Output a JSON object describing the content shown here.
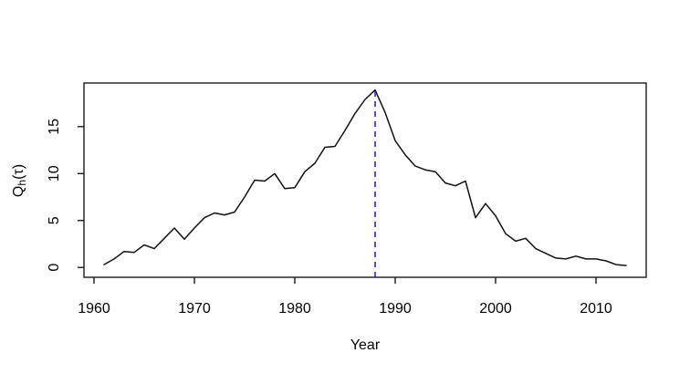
{
  "chart_data": {
    "type": "line",
    "title": "",
    "xlabel": "Year",
    "ylabel": "Qh(τ)",
    "ylabel_parts": {
      "pre": "Q",
      "sub": "h",
      "post": "(τ)"
    },
    "x": [
      1961,
      1962,
      1963,
      1964,
      1965,
      1966,
      1967,
      1968,
      1969,
      1970,
      1971,
      1972,
      1973,
      1974,
      1975,
      1976,
      1977,
      1978,
      1979,
      1980,
      1981,
      1982,
      1983,
      1984,
      1985,
      1986,
      1987,
      1988,
      1989,
      1990,
      1991,
      1992,
      1993,
      1994,
      1995,
      1996,
      1997,
      1998,
      1999,
      2000,
      2001,
      2002,
      2003,
      2004,
      2005,
      2006,
      2007,
      2008,
      2009,
      2010,
      2011,
      2012,
      2013
    ],
    "values": [
      0.3,
      0.9,
      1.7,
      1.6,
      2.4,
      2.0,
      3.1,
      4.2,
      3.0,
      4.2,
      5.3,
      5.8,
      5.6,
      5.9,
      7.5,
      9.3,
      9.2,
      10.0,
      8.4,
      8.5,
      10.2,
      11.1,
      12.8,
      12.9,
      14.6,
      16.4,
      17.9,
      18.9,
      16.5,
      13.5,
      12.0,
      10.8,
      10.4,
      10.2,
      9.0,
      8.7,
      9.2,
      5.3,
      6.8,
      5.5,
      3.6,
      2.8,
      3.1,
      2.0,
      1.5,
      1.0,
      0.9,
      1.2,
      0.9,
      0.9,
      0.7,
      0.3,
      0.2
    ],
    "series_color": "#111111",
    "vline": {
      "x": 1988,
      "color": "#2626d8",
      "style": "dashed"
    },
    "xlim": [
      1959,
      2015
    ],
    "ylim": [
      -1.05,
      19.65
    ],
    "x_ticks": [
      1960,
      1970,
      1980,
      1990,
      2000,
      2010
    ],
    "y_ticks": [
      0,
      5,
      10,
      15
    ],
    "grid": false,
    "legend": null
  }
}
